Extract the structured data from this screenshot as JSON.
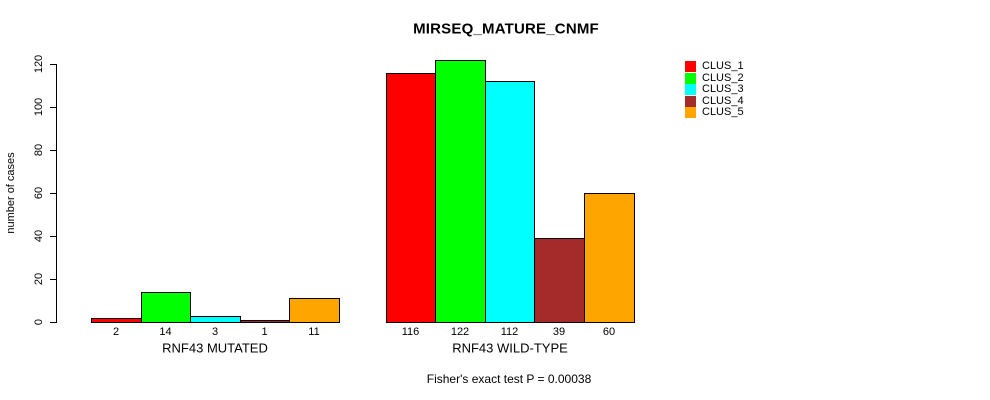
{
  "chart_data": {
    "type": "bar",
    "title": "MIRSEQ_MATURE_CNMF",
    "ylabel": "number of cases",
    "xlabel": "",
    "caption": "Fisher's exact test P = 0.00038",
    "ylim": [
      0,
      120
    ],
    "yticks": [
      0,
      20,
      40,
      60,
      80,
      100,
      120
    ],
    "grid": false,
    "legend_position": "top-right",
    "series": [
      {
        "name": "CLUS_1",
        "color": "#FF0000"
      },
      {
        "name": "CLUS_2",
        "color": "#00FF00"
      },
      {
        "name": "CLUS_3",
        "color": "#00FFFF"
      },
      {
        "name": "CLUS_4",
        "color": "#A52A2A"
      },
      {
        "name": "CLUS_5",
        "color": "#FFA500"
      }
    ],
    "groups": [
      {
        "label": "RNF43 MUTATED",
        "values": [
          2,
          14,
          3,
          1,
          11
        ]
      },
      {
        "label": "RNF43 WILD-TYPE",
        "values": [
          116,
          122,
          112,
          39,
          60
        ]
      }
    ],
    "bar_border_color": "#000000",
    "axis_color": "#000000"
  }
}
